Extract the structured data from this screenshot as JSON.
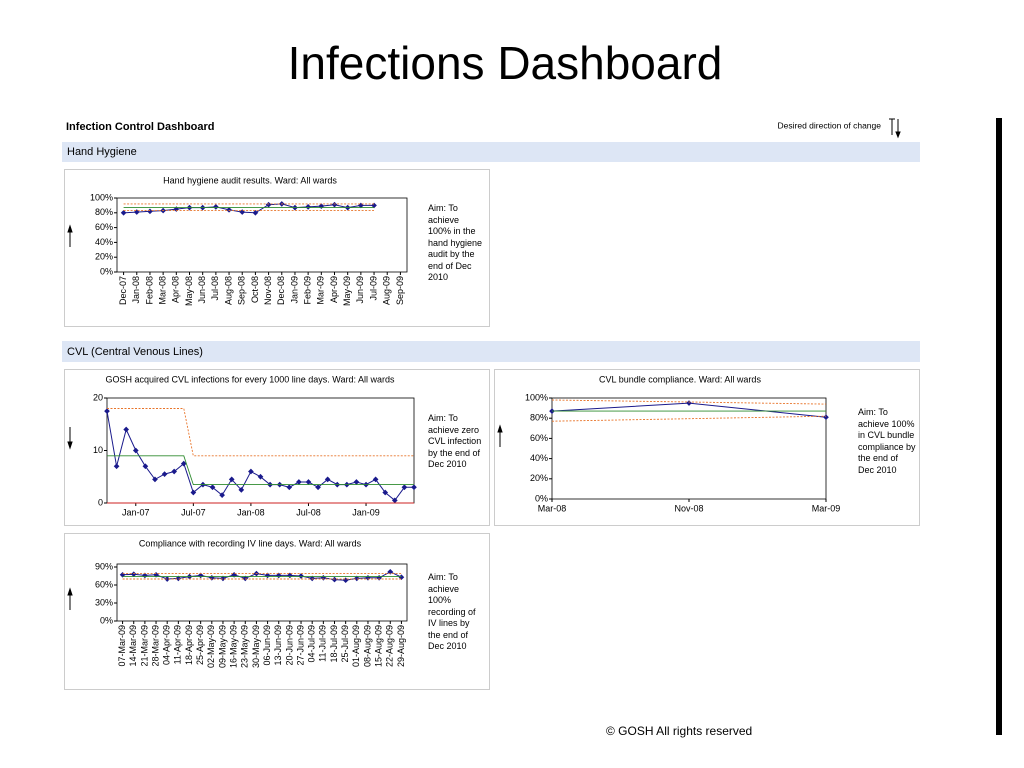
{
  "title": "Infections Dashboard",
  "dashboard_title": "Infection Control Dashboard",
  "direction_label": "Desired direction of change",
  "sections": [
    "Hand Hygiene",
    "CVL (Central Venous Lines)"
  ],
  "aims": [
    "Aim:  To achieve 100% in the hand hygiene audit by the end of Dec 2010",
    "Aim:  To achieve zero CVL infection by the end of Dec 2010",
    "Aim:  To achieve 100% in CVL bundle compliance by the end of Dec 2010",
    "Aim:  To achieve 100% recording of IV lines by the end of Dec 2010"
  ],
  "footer": "© GOSH All rights reserved",
  "chart_data": [
    {
      "type": "line",
      "title": "Hand hygiene audit results. Ward: All wards",
      "categories": [
        "Dec-07",
        "Jan-08",
        "Feb-08",
        "Mar-08",
        "Apr-08",
        "May-08",
        "Jun-08",
        "Jul-08",
        "Aug-08",
        "Sep-08",
        "Oct-08",
        "Nov-08",
        "Dec-08",
        "Jan-09",
        "Feb-09",
        "Mar-09",
        "Apr-09",
        "May-09",
        "Jun-09",
        "Jul-09",
        "Aug-09",
        "Sep-09"
      ],
      "series": [
        {
          "color": "#1a1a8c",
          "marker": true,
          "values": [
            80,
            81,
            82,
            83,
            85,
            87,
            87,
            88,
            84,
            81,
            80,
            91,
            92,
            87,
            88,
            89,
            91,
            87,
            90,
            90,
            null,
            null
          ]
        },
        {
          "color": "#2e8b2e",
          "values": [
            87,
            87,
            87,
            87,
            87,
            87,
            87,
            87,
            87,
            87,
            87,
            87,
            87,
            87,
            87,
            87,
            87,
            87,
            87,
            87,
            null,
            null
          ]
        },
        {
          "color": "#e8742a",
          "dash": true,
          "values": [
            92,
            92,
            92,
            92,
            92,
            92,
            92,
            92,
            92,
            92,
            92,
            92,
            92,
            92,
            92,
            92,
            92,
            92,
            92,
            92,
            null,
            null
          ]
        },
        {
          "color": "#e8742a",
          "dash": true,
          "values": [
            83,
            83,
            83,
            83,
            83,
            83,
            83,
            83,
            83,
            83,
            83,
            83,
            83,
            83,
            83,
            83,
            83,
            83,
            83,
            83,
            null,
            null
          ]
        }
      ],
      "ylim": [
        0,
        100
      ],
      "yticks": [
        {
          "value": 0,
          "label": "0%"
        },
        {
          "value": 20,
          "label": "20%"
        },
        {
          "value": 40,
          "label": "40%"
        },
        {
          "value": 60,
          "label": "60%"
        },
        {
          "value": 80,
          "label": "80%"
        },
        {
          "value": 100,
          "label": "100%"
        }
      ],
      "rotated_labels": true
    },
    {
      "type": "line",
      "title": "GOSH acquired CVL infections for every 1000 line days. Ward: All wards",
      "categories": [
        null,
        null,
        null,
        "Jan-07",
        null,
        null,
        null,
        null,
        null,
        "Jul-07",
        null,
        null,
        null,
        null,
        null,
        "Jan-08",
        null,
        null,
        null,
        null,
        null,
        "Jul-08",
        null,
        null,
        null,
        null,
        null,
        "Jan-09",
        null,
        null,
        null,
        null,
        null
      ],
      "series": [
        {
          "color": "#1a1a8c",
          "marker": true,
          "values": [
            17.5,
            7,
            14,
            10,
            7,
            4.5,
            5.5,
            6,
            7.5,
            2,
            3.5,
            3,
            1.5,
            4.5,
            2.5,
            6,
            5,
            3.5,
            3.5,
            3,
            4,
            4,
            3,
            4.5,
            3.5,
            3.5,
            4,
            3.5,
            4.5,
            2,
            0.5,
            3,
            3
          ]
        },
        {
          "color": "#2e8b2e",
          "values": [
            9,
            9,
            9,
            9,
            9,
            9,
            9,
            9,
            9,
            3.5,
            3.5,
            3.5,
            3.5,
            3.5,
            3.5,
            3.5,
            3.5,
            3.5,
            3.5,
            3.5,
            3.5,
            3.5,
            3.5,
            3.5,
            3.5,
            3.5,
            3.5,
            3.5,
            3.5,
            3.5,
            3.5,
            3.5,
            3.5
          ]
        },
        {
          "color": "#e8742a",
          "dash": true,
          "values": [
            18,
            18,
            18,
            18,
            18,
            18,
            18,
            18,
            18,
            9,
            9,
            9,
            9,
            9,
            9,
            9,
            9,
            9,
            9,
            9,
            9,
            9,
            9,
            9,
            9,
            9,
            9,
            9,
            9,
            9,
            9,
            9,
            9
          ]
        },
        {
          "color": "#cc2020",
          "values": [
            0,
            0,
            0,
            0,
            0,
            0,
            0,
            0,
            0,
            0,
            0,
            0,
            0,
            0,
            0,
            0,
            0,
            0,
            0,
            0,
            0,
            0,
            0,
            0,
            0,
            0,
            0,
            0,
            0,
            0,
            0,
            0,
            0
          ]
        }
      ],
      "ylim": [
        0,
        20
      ],
      "yticks": [
        0,
        10,
        20
      ]
    },
    {
      "type": "line",
      "title": "CVL bundle compliance. Ward: All wards",
      "categories": [
        "Mar-08",
        "Nov-08",
        "Mar-09"
      ],
      "series": [
        {
          "color": "#1a1a8c",
          "marker": true,
          "values": [
            87,
            95,
            81
          ]
        },
        {
          "color": "#2e8b2e",
          "values": [
            87,
            87,
            87
          ]
        },
        {
          "color": "#e8742a",
          "dash": true,
          "values": [
            98,
            96,
            94
          ]
        },
        {
          "color": "#e8742a",
          "dash": true,
          "values": [
            77,
            79.5,
            82
          ]
        }
      ],
      "ylim": [
        0,
        100
      ],
      "yticks": [
        {
          "value": 0,
          "label": "0%"
        },
        {
          "value": 20,
          "label": "20%"
        },
        {
          "value": 40,
          "label": "40%"
        },
        {
          "value": 60,
          "label": "60%"
        },
        {
          "value": 80,
          "label": "80%"
        },
        {
          "value": 100,
          "label": "100%"
        }
      ]
    },
    {
      "type": "line",
      "title": "Compliance with recording IV line days. Ward: All wards",
      "categories": [
        "07-Mar-09",
        "14-Mar-09",
        "21-Mar-09",
        "28-Mar-09",
        "04-Apr-09",
        "11-Apr-09",
        "18-Apr-09",
        "25-Apr-09",
        "02-May-09",
        "09-May-09",
        "16-May-09",
        "23-May-09",
        "30-May-09",
        "06-Jun-09",
        "13-Jun-09",
        "20-Jun-09",
        "27-Jun-09",
        "04-Jul-09",
        "11-Jul-09",
        "18-Jul-09",
        "25-Jul-09",
        "01-Aug-09",
        "08-Aug-09",
        "15-Aug-09",
        "22-Aug-09",
        "29-Aug-09"
      ],
      "series": [
        {
          "color": "#1a1a8c",
          "marker": true,
          "values": [
            77,
            78,
            76,
            77,
            70,
            71,
            74,
            76,
            72,
            71,
            77,
            71,
            79,
            76,
            76,
            76,
            75,
            71,
            72,
            69,
            68,
            71,
            72,
            72,
            82,
            73
          ]
        },
        {
          "color": "#2e8b2e",
          "values": [
            74,
            74,
            74,
            74,
            74,
            74,
            74,
            74,
            74,
            74,
            74,
            74,
            74,
            74,
            74,
            74,
            74,
            74,
            74,
            74,
            74,
            74,
            74,
            74,
            74,
            74
          ]
        },
        {
          "color": "#e8742a",
          "dash": true,
          "values": [
            79,
            79,
            79,
            79,
            79,
            79,
            79,
            79,
            79,
            79,
            79,
            79,
            79,
            79,
            79,
            79,
            79,
            79,
            79,
            79,
            79,
            79,
            79,
            79,
            79,
            79
          ]
        },
        {
          "color": "#e8742a",
          "dash": true,
          "values": [
            70,
            70,
            70,
            70,
            70,
            70,
            70,
            70,
            70,
            70,
            70,
            70,
            70,
            70,
            70,
            70,
            70,
            70,
            70,
            70,
            70,
            70,
            70,
            70,
            70,
            70
          ]
        }
      ],
      "ylim": [
        0,
        95
      ],
      "yticks": [
        {
          "value": 0,
          "label": "0%"
        },
        {
          "value": 30,
          "label": "30%"
        },
        {
          "value": 60,
          "label": "60%"
        },
        {
          "value": 90,
          "label": "90%"
        }
      ],
      "rotated_labels": true
    }
  ]
}
